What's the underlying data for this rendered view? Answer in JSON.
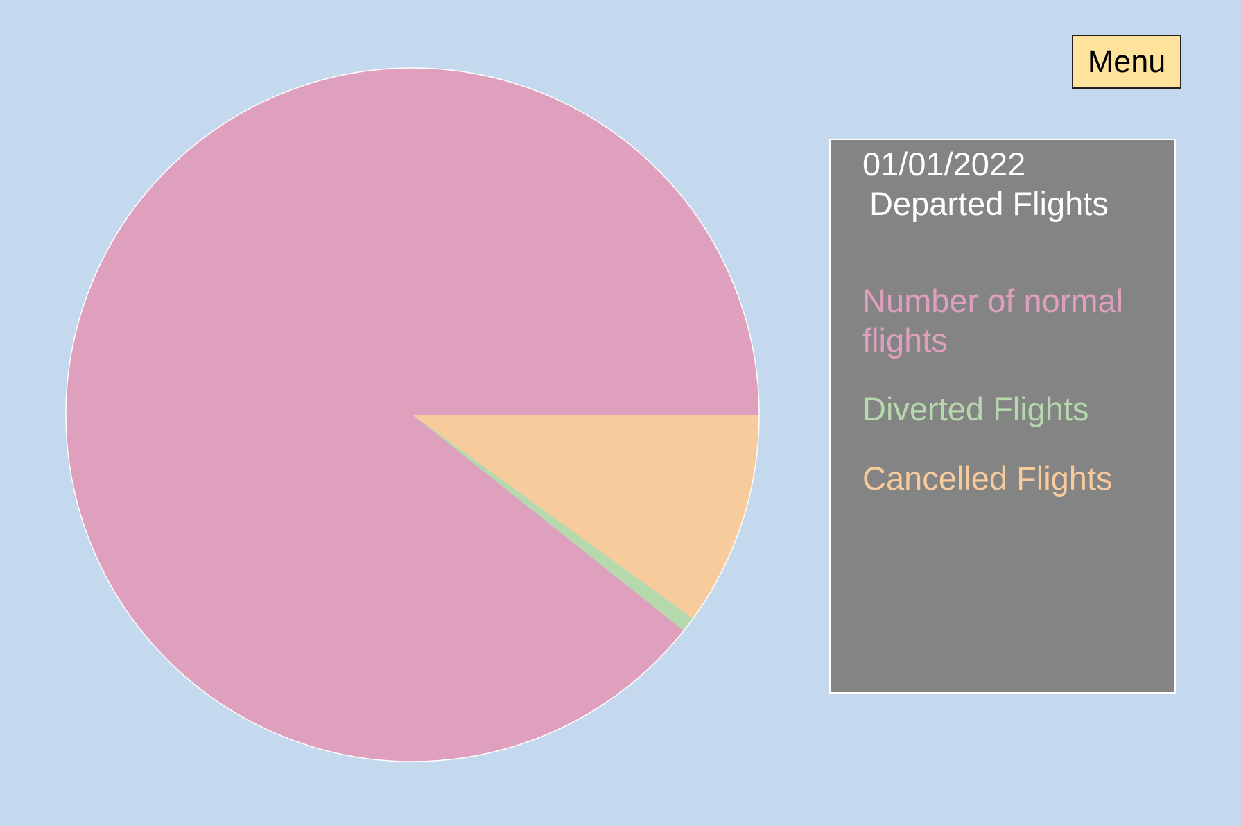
{
  "menu": {
    "label": "Menu"
  },
  "legend": {
    "date": "01/01/2022",
    "title": "Departed Flights"
  },
  "colors": {
    "background": "#c4d9ed",
    "panel": "#848484",
    "menu_button": "#ffe39c"
  },
  "chart_data": {
    "type": "pie",
    "title": "",
    "slices": [
      {
        "label": "Number of normal flights",
        "value": 89.3,
        "color": "#dfa0be"
      },
      {
        "label": "Diverted Flights",
        "value": 0.7,
        "color": "#b5d8ac"
      },
      {
        "label": "Cancelled Flights",
        "value": 10.0,
        "color": "#f8cb9d"
      }
    ]
  }
}
